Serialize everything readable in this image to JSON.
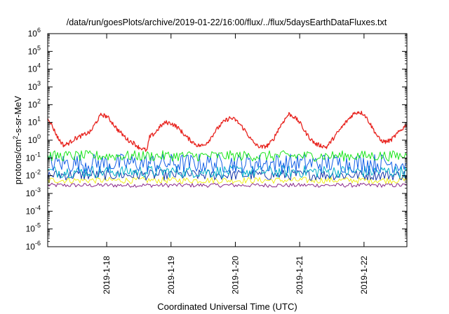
{
  "chart_data": {
    "type": "line",
    "title": "/data/run/goesPlots/archive/2019-01-22/16:00/flux/../flux/5daysEarthDataFluxes.txt",
    "xlabel": "Coordinated Universal Time (UTC)",
    "ylabel": {
      "base": "protons/cm",
      "sup": "2",
      "rest": "-s-sr-MeV"
    },
    "yscale": "log",
    "ylim": [
      1e-06,
      1000000.0
    ],
    "xlim": [
      "2019-01-17 02:00",
      "2019-01-22 16:00"
    ],
    "y_ticks": [
      {
        "value": 1e-06,
        "base": "10",
        "exp": "-6"
      },
      {
        "value": 1e-05,
        "base": "10",
        "exp": "-5"
      },
      {
        "value": 0.0001,
        "base": "10",
        "exp": "-4"
      },
      {
        "value": 0.001,
        "base": "10",
        "exp": "-3"
      },
      {
        "value": 0.01,
        "base": "10",
        "exp": "-2"
      },
      {
        "value": 0.1,
        "base": "10",
        "exp": "-1"
      },
      {
        "value": 1,
        "base": "10",
        "exp": "0"
      },
      {
        "value": 10,
        "base": "10",
        "exp": "1"
      },
      {
        "value": 100,
        "base": "10",
        "exp": "2"
      },
      {
        "value": 1000,
        "base": "10",
        "exp": "3"
      },
      {
        "value": 10000,
        "base": "10",
        "exp": "4"
      },
      {
        "value": 100000,
        "base": "10",
        "exp": "5"
      },
      {
        "value": 1000000,
        "base": "10",
        "exp": "6"
      }
    ],
    "x_ticks": [
      {
        "value": "2019-01-18 00:00",
        "label": "2019-1-18"
      },
      {
        "value": "2019-01-19 00:00",
        "label": "2019-1-19"
      },
      {
        "value": "2019-01-20 00:00",
        "label": "2019-1-20"
      },
      {
        "value": "2019-01-21 00:00",
        "label": "2019-1-21"
      },
      {
        "value": "2019-01-22 00:00",
        "label": "2019-1-22"
      }
    ],
    "grid": false,
    "legend": "none",
    "series": [
      {
        "color": "#e8231e",
        "x": [
          "2019-01-17 02:00",
          "2019-01-17 04:00",
          "2019-01-17 06:00",
          "2019-01-17 08:00",
          "2019-01-17 10:00",
          "2019-01-17 12:00",
          "2019-01-17 14:00",
          "2019-01-17 16:00",
          "2019-01-17 18:00",
          "2019-01-17 20:00",
          "2019-01-17 22:00",
          "2019-01-18 00:00",
          "2019-01-18 02:00",
          "2019-01-18 04:00",
          "2019-01-18 06:00",
          "2019-01-18 08:00",
          "2019-01-18 10:00",
          "2019-01-18 12:00",
          "2019-01-18 14:00",
          "2019-01-18 15:00",
          "2019-01-18 16:00",
          "2019-01-18 18:00",
          "2019-01-18 20:00",
          "2019-01-18 22:00",
          "2019-01-19 00:00",
          "2019-01-19 02:00",
          "2019-01-19 04:00",
          "2019-01-19 06:00",
          "2019-01-19 08:00",
          "2019-01-19 10:00",
          "2019-01-19 12:00",
          "2019-01-19 14:00",
          "2019-01-19 16:00",
          "2019-01-19 18:00",
          "2019-01-19 20:00",
          "2019-01-19 22:00",
          "2019-01-20 00:00",
          "2019-01-20 02:00",
          "2019-01-20 04:00",
          "2019-01-20 06:00",
          "2019-01-20 08:00",
          "2019-01-20 10:00",
          "2019-01-20 12:00",
          "2019-01-20 14:00",
          "2019-01-20 16:00",
          "2019-01-20 18:00",
          "2019-01-20 20:00",
          "2019-01-20 22:00",
          "2019-01-21 00:00",
          "2019-01-21 02:00",
          "2019-01-21 04:00",
          "2019-01-21 06:00",
          "2019-01-21 08:00",
          "2019-01-21 10:00",
          "2019-01-21 12:00",
          "2019-01-21 14:00",
          "2019-01-21 16:00",
          "2019-01-21 18:00",
          "2019-01-21 20:00",
          "2019-01-21 22:00",
          "2019-01-22 00:00",
          "2019-01-22 02:00",
          "2019-01-22 04:00",
          "2019-01-22 06:00",
          "2019-01-22 08:00",
          "2019-01-22 10:00",
          "2019-01-22 12:00",
          "2019-01-22 14:00",
          "2019-01-22 16:00"
        ],
        "y": [
          20,
          5,
          1.2,
          0.5,
          0.7,
          1.2,
          1.6,
          2.2,
          3,
          10,
          28,
          22,
          10,
          4,
          2,
          1,
          0.7,
          0.4,
          0.3,
          0.25,
          1.5,
          2.5,
          6,
          10,
          9,
          6,
          3,
          1.4,
          0.8,
          0.5,
          0.5,
          0.9,
          2.5,
          6,
          12,
          18,
          14,
          7,
          3,
          1,
          0.5,
          0.4,
          0.5,
          1,
          4,
          12,
          30,
          20,
          10,
          3,
          1.2,
          0.6,
          0.5,
          0.4,
          1,
          2.5,
          6,
          14,
          30,
          40,
          30,
          10,
          3,
          1,
          0.8,
          1,
          2,
          4,
          8
        ]
      },
      {
        "color": "#1ee61e",
        "x": [
          "2019-01-17 02:00",
          "2019-01-22 16:00"
        ],
        "y": [
          0.13,
          0.13
        ]
      },
      {
        "color": "#1460e6",
        "x": [
          "2019-01-17 02:00",
          "2019-01-22 16:00"
        ],
        "y": [
          0.05,
          0.05
        ]
      },
      {
        "color": "#00b0c8",
        "x": [
          "2019-01-17 02:00",
          "2019-01-22 16:00"
        ],
        "y": [
          0.017,
          0.017
        ]
      },
      {
        "color": "#1a3aaa",
        "x": [
          "2019-01-17 02:00",
          "2019-01-22 16:00"
        ],
        "y": [
          0.011,
          0.011
        ]
      },
      {
        "color": "#f0f020",
        "x": [
          "2019-01-17 02:00",
          "2019-01-22 16:00"
        ],
        "y": [
          0.0055,
          0.0055
        ]
      },
      {
        "color": "#8a2a8a",
        "x": [
          "2019-01-17 02:00",
          "2019-01-22 16:00"
        ],
        "y": [
          0.0029,
          0.0029
        ]
      }
    ]
  }
}
